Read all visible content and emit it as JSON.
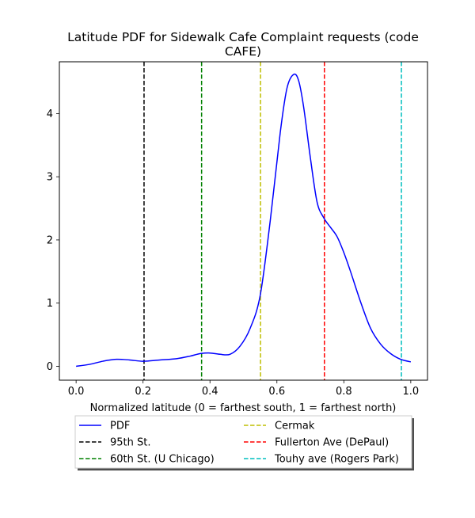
{
  "chart_data": {
    "type": "line",
    "title_lines": [
      "Latitude PDF for Sidewalk Cafe Complaint  requests (code",
      "CAFE)"
    ],
    "xlabel": "Normalized latitude (0 = farthest south, 1 = farthest north)",
    "ylabel": "",
    "xlim": [
      -0.05,
      1.05
    ],
    "ylim": [
      -0.22,
      4.82
    ],
    "xticks": [
      0.0,
      0.2,
      0.4,
      0.6,
      0.8,
      1.0
    ],
    "xtick_labels": [
      "0.0",
      "0.2",
      "0.4",
      "0.6",
      "0.8",
      "1.0"
    ],
    "yticks": [
      0,
      1,
      2,
      3,
      4
    ],
    "ytick_labels": [
      "0",
      "1",
      "2",
      "3",
      "4"
    ],
    "grid": false,
    "legend_placement": "below-center",
    "series": [
      {
        "name": "PDF",
        "color": "#0000ff",
        "style": "solid",
        "x": [
          0.0,
          0.04,
          0.08,
          0.12,
          0.16,
          0.2,
          0.25,
          0.3,
          0.34,
          0.37,
          0.4,
          0.43,
          0.46,
          0.49,
          0.52,
          0.55,
          0.58,
          0.61,
          0.63,
          0.65,
          0.665,
          0.68,
          0.7,
          0.72,
          0.74,
          0.76,
          0.78,
          0.8,
          0.82,
          0.85,
          0.88,
          0.91,
          0.94,
          0.97,
          1.0
        ],
        "y": [
          0.0,
          0.03,
          0.08,
          0.11,
          0.1,
          0.08,
          0.1,
          0.12,
          0.16,
          0.2,
          0.21,
          0.19,
          0.19,
          0.32,
          0.6,
          1.12,
          2.3,
          3.7,
          4.4,
          4.62,
          4.52,
          4.1,
          3.3,
          2.6,
          2.35,
          2.2,
          2.05,
          1.8,
          1.5,
          1.02,
          0.6,
          0.35,
          0.2,
          0.11,
          0.07
        ]
      }
    ],
    "vlines": [
      {
        "name": "95th St.",
        "x": 0.203,
        "color": "#000000"
      },
      {
        "name": "60th St. (U Chicago)",
        "x": 0.375,
        "color": "#008000"
      },
      {
        "name": "Cermak",
        "x": 0.551,
        "color": "#bfbf00"
      },
      {
        "name": "Fullerton Ave (DePaul)",
        "x": 0.742,
        "color": "#ff0000"
      },
      {
        "name": "Touhy ave (Rogers Park)",
        "x": 0.972,
        "color": "#00bfbf"
      }
    ],
    "legend_entries": [
      {
        "label": "PDF",
        "color": "#0000ff",
        "style": "solid"
      },
      {
        "label": "95th St.",
        "color": "#000000",
        "style": "dashed"
      },
      {
        "label": "60th St. (U Chicago)",
        "color": "#008000",
        "style": "dashed"
      },
      {
        "label": "Cermak",
        "color": "#bfbf00",
        "style": "dashed"
      },
      {
        "label": "Fullerton Ave (DePaul)",
        "color": "#ff0000",
        "style": "dashed"
      },
      {
        "label": "Touhy ave (Rogers Park)",
        "color": "#00bfbf",
        "style": "dashed"
      }
    ]
  }
}
